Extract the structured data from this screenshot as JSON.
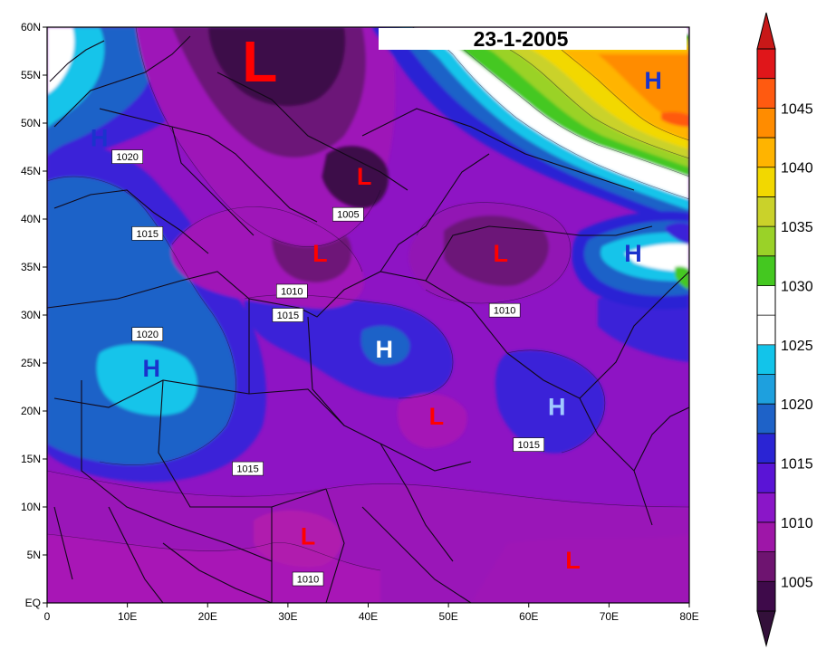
{
  "title": "23-1-2005",
  "map": {
    "lat_ticks": [
      "EQ",
      "5N",
      "10N",
      "15N",
      "20N",
      "25N",
      "30N",
      "35N",
      "40N",
      "45N",
      "50N",
      "55N",
      "60N"
    ],
    "lon_ticks": [
      "0",
      "10E",
      "20E",
      "30E",
      "40E",
      "50E",
      "60E",
      "70E",
      "80E"
    ],
    "lat_range": [
      0,
      60
    ],
    "lon_range": [
      0,
      80
    ]
  },
  "pressure_centers": [
    {
      "label": "L",
      "lon": 26.5,
      "lat": 56.5,
      "size": "large",
      "color": "#ff0000"
    },
    {
      "label": "L",
      "lon": 39.5,
      "lat": 44.5,
      "size": "medium",
      "color": "#ff0000"
    },
    {
      "label": "L",
      "lon": 34.0,
      "lat": 36.5,
      "size": "medium",
      "color": "#ff0000"
    },
    {
      "label": "L",
      "lon": 56.5,
      "lat": 36.5,
      "size": "medium",
      "color": "#ff0000"
    },
    {
      "label": "L",
      "lon": 48.5,
      "lat": 19.5,
      "size": "medium",
      "color": "#ff0000"
    },
    {
      "label": "L",
      "lon": 32.5,
      "lat": 7.0,
      "size": "medium",
      "color": "#ff0000"
    },
    {
      "label": "L",
      "lon": 65.5,
      "lat": 4.5,
      "size": "medium",
      "color": "#ff0000"
    },
    {
      "label": "H",
      "lon": 6.5,
      "lat": 48.5,
      "size": "medium",
      "color": "#1a33cc"
    },
    {
      "label": "H",
      "lon": 13.0,
      "lat": 24.5,
      "size": "medium",
      "color": "#1a33cc"
    },
    {
      "label": "H",
      "lon": 42.0,
      "lat": 26.5,
      "size": "medium",
      "color": "#ffffff"
    },
    {
      "label": "H",
      "lon": 63.5,
      "lat": 20.5,
      "size": "medium",
      "color": "#a0c8ff"
    },
    {
      "label": "H",
      "lon": 75.5,
      "lat": 54.5,
      "size": "medium",
      "color": "#1a33cc"
    },
    {
      "label": "H",
      "lon": 73.0,
      "lat": 36.5,
      "size": "medium",
      "color": "#1a33cc"
    }
  ],
  "contour_labels": [
    {
      "text": "1020",
      "lon": 10.0,
      "lat": 46.5
    },
    {
      "text": "1015",
      "lon": 12.5,
      "lat": 38.5
    },
    {
      "text": "1005",
      "lon": 37.5,
      "lat": 40.5
    },
    {
      "text": "1010",
      "lon": 30.5,
      "lat": 32.5
    },
    {
      "text": "1015",
      "lon": 30.0,
      "lat": 30.0
    },
    {
      "text": "1020",
      "lon": 12.5,
      "lat": 28.0
    },
    {
      "text": "1010",
      "lon": 57.0,
      "lat": 30.5
    },
    {
      "text": "1015",
      "lon": 60.0,
      "lat": 16.5
    },
    {
      "text": "1015",
      "lon": 25.0,
      "lat": 14.0
    },
    {
      "text": "1010",
      "lon": 32.5,
      "lat": 2.5
    }
  ],
  "colorbar": {
    "labels": [
      "1005",
      "1010",
      "1015",
      "1020",
      "1025",
      "1030",
      "1035",
      "1040",
      "1045"
    ],
    "colors": [
      "#3e0a4a",
      "#6e1470",
      "#9e16a8",
      "#8a16c8",
      "#5a14d6",
      "#2a24d4",
      "#1e62c8",
      "#1ea0de",
      "#12c4ea",
      "#ffffff",
      "#ffffff",
      "#44c820",
      "#9ad228",
      "#cad22a",
      "#f2d800",
      "#ffb400",
      "#ff8c00",
      "#ff5a10",
      "#e0161a"
    ],
    "under_color": "#33103a",
    "over_color": "#c81818"
  }
}
